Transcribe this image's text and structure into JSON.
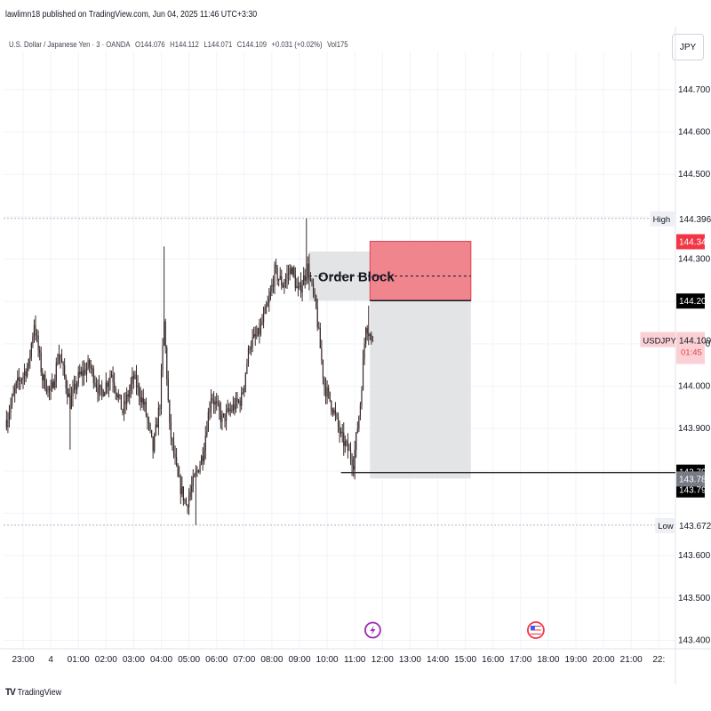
{
  "header": {
    "published": "lawlimn18 published on TradingView.com, Jun 04, 2025 11:46 UTC+3:30",
    "symbol": "U.S. Dollar / Japanese Yen · 3 · OANDA",
    "open": "O144.076",
    "high": "H144.112",
    "low": "L144.071",
    "close": "C144.109",
    "change": "+0.031 (+0.02%)",
    "volume": "Vol175",
    "currency": "JPY"
  },
  "footer": {
    "brand": "TradingView",
    "logo": "TV"
  },
  "colors": {
    "candle": "#3a2a2a",
    "zone_fill": "#e0e1e3",
    "order_block_fill": "#ef7e88",
    "order_block_border": "#e04352",
    "grid": "#f0f3fa",
    "dotted": "#b2b5be",
    "label_red": "#f23645",
    "label_pink": "#fbd0d4",
    "label_black": "#000000",
    "label_gray": "#787b86"
  },
  "chart_data": {
    "type": "candlestick",
    "symbol": "USDJPY",
    "ylim": [
      143.38,
      144.79
    ],
    "y_ticks": [
      "144.700",
      "144.600",
      "144.500",
      "144.300",
      "144.100",
      "144.000",
      "143.900",
      "143.600",
      "143.500",
      "143.400"
    ],
    "x_ticks": [
      "23:00",
      "4",
      "01:00",
      "02:00",
      "03:00",
      "04:00",
      "05:00",
      "06:00",
      "07:00",
      "08:00",
      "09:00",
      "10:00",
      "11:00",
      "12:00",
      "13:00",
      "14:00",
      "15:00",
      "16:00",
      "17:00",
      "18:00",
      "19:00",
      "20:00",
      "21:00",
      "22:"
    ],
    "x_tick_hours": [
      -1,
      0,
      1,
      2,
      3,
      4,
      5,
      6,
      7,
      8,
      9,
      10,
      11,
      12,
      13,
      14,
      15,
      16,
      17,
      18,
      19,
      20,
      21,
      22
    ],
    "x_range_hours": [
      -1.6,
      22.55
    ],
    "last_price_hour": 11.65,
    "path": [
      [
        -1.6,
        143.92
      ],
      [
        -1.25,
        144.0
      ],
      [
        -0.8,
        144.05
      ],
      [
        -0.6,
        144.15
      ],
      [
        -0.3,
        144.02
      ],
      [
        0.0,
        143.98
      ],
      [
        0.3,
        144.08
      ],
      [
        0.7,
        143.96
      ],
      [
        1.0,
        144.02
      ],
      [
        1.4,
        144.05
      ],
      [
        1.8,
        143.98
      ],
      [
        2.2,
        144.03
      ],
      [
        2.6,
        143.94
      ],
      [
        3.0,
        144.02
      ],
      [
        3.4,
        143.95
      ],
      [
        3.7,
        143.85
      ],
      [
        3.95,
        143.96
      ],
      [
        4.1,
        144.15
      ],
      [
        4.3,
        143.9
      ],
      [
        4.6,
        143.78
      ],
      [
        4.9,
        143.72
      ],
      [
        5.2,
        143.78
      ],
      [
        5.5,
        143.84
      ],
      [
        5.8,
        143.98
      ],
      [
        6.2,
        143.92
      ],
      [
        6.6,
        143.95
      ],
      [
        6.9,
        143.97
      ],
      [
        7.2,
        144.1
      ],
      [
        7.5,
        144.12
      ],
      [
        7.9,
        144.2
      ],
      [
        8.1,
        144.27
      ],
      [
        8.4,
        144.24
      ],
      [
        8.7,
        144.28
      ],
      [
        8.95,
        144.22
      ],
      [
        9.3,
        144.28
      ],
      [
        9.6,
        144.18
      ],
      [
        9.9,
        144.0
      ],
      [
        10.2,
        143.95
      ],
      [
        10.5,
        143.88
      ],
      [
        10.75,
        143.85
      ],
      [
        10.95,
        143.82
      ],
      [
        11.2,
        143.96
      ],
      [
        11.4,
        144.15
      ],
      [
        11.55,
        144.12
      ],
      [
        11.65,
        144.109
      ]
    ],
    "spikes": [
      [
        4.1,
        144.33
      ],
      [
        9.25,
        144.396
      ],
      [
        5.25,
        143.672
      ],
      [
        0.7,
        143.85
      ],
      [
        11.5,
        144.19
      ],
      [
        10.9,
        143.79
      ]
    ],
    "levels": {
      "high": 144.396,
      "low": 143.672,
      "order_block_top": 144.342,
      "order_block_bottom": 144.202,
      "support": 143.796,
      "target": 143.782
    },
    "zones": [
      {
        "kind": "supply",
        "x0": 9.35,
        "x1": 11.55,
        "top": 144.318,
        "bottom": 144.202
      },
      {
        "kind": "order_block",
        "x0": 11.55,
        "x1": 15.2,
        "top": 144.342,
        "bottom": 144.202
      },
      {
        "kind": "target",
        "x0": 11.55,
        "x1": 15.2,
        "top": 144.202,
        "bottom": 143.782
      }
    ],
    "support_line_start": 10.5,
    "annotation": {
      "text": "Order Block",
      "hour": 11.05,
      "value": 144.26
    },
    "dashed_line": {
      "x0": 9.35,
      "x1": 15.2,
      "value": 144.26
    },
    "axis_labels": [
      {
        "name": "high",
        "prefix": "High",
        "value": "144.396",
        "style": "plain"
      },
      {
        "name": "order-block-top",
        "prefix": "",
        "value": "144.342",
        "style": "red"
      },
      {
        "name": "order-block-bottom",
        "prefix": "",
        "value": "144.202",
        "style": "black"
      },
      {
        "name": "last-price",
        "prefix": "USDJPY",
        "value": "144.109",
        "sub": "01:45",
        "style": "pink"
      },
      {
        "name": "support-1",
        "prefix": "",
        "value": "143.796",
        "style": "black"
      },
      {
        "name": "support-2",
        "prefix": "",
        "value": "143.796",
        "style": "black"
      },
      {
        "name": "target",
        "prefix": "",
        "value": "143.782",
        "style": "gray"
      },
      {
        "name": "low",
        "prefix": "Low",
        "value": "143.672",
        "style": "plain"
      }
    ],
    "events": [
      {
        "name": "lightning-icon",
        "hour": 11.65
      },
      {
        "name": "us-flag-icon",
        "hour": 17.55
      }
    ]
  }
}
